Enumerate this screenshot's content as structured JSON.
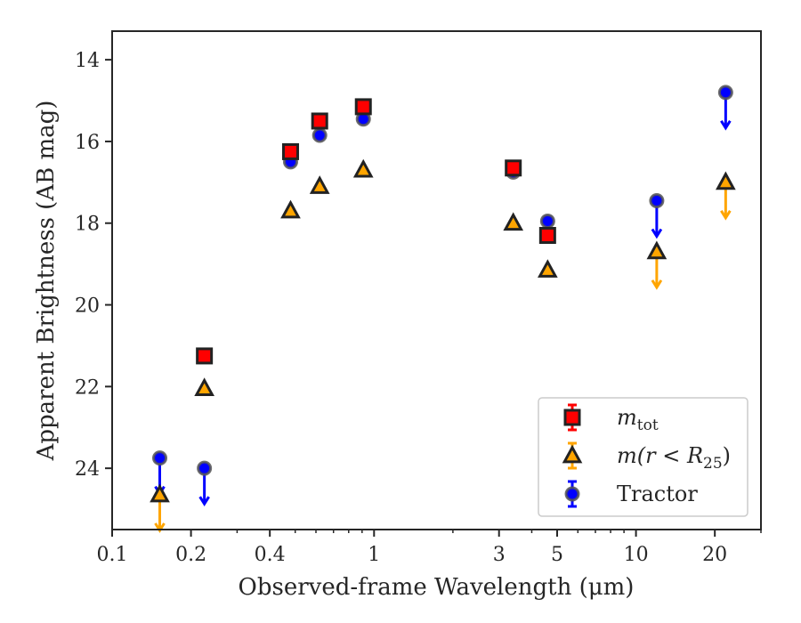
{
  "chart_data": {
    "type": "scatter",
    "xscale": "log",
    "xlim": [
      0.1,
      30
    ],
    "ylim": [
      25.5,
      13.3
    ],
    "y_inverted": true,
    "grid": false,
    "legend_position": "lower-right",
    "xlabel": "Observed-frame Wavelength (μm)",
    "ylabel": "Apparent Brightness (AB mag)",
    "xticks": [
      {
        "value": 0.1,
        "label": "0.1"
      },
      {
        "value": 0.2,
        "label": "0.2"
      },
      {
        "value": 0.4,
        "label": "0.4"
      },
      {
        "value": 1,
        "label": "1"
      },
      {
        "value": 3,
        "label": "3"
      },
      {
        "value": 5,
        "label": "5"
      },
      {
        "value": 10,
        "label": "10"
      },
      {
        "value": 20,
        "label": "20"
      }
    ],
    "yticks": [
      {
        "value": 14,
        "label": "14"
      },
      {
        "value": 16,
        "label": "16"
      },
      {
        "value": 18,
        "label": "18"
      },
      {
        "value": 20,
        "label": "20"
      },
      {
        "value": 22,
        "label": "22"
      },
      {
        "value": 24,
        "label": "24"
      }
    ],
    "series": [
      {
        "name": "m_tot",
        "legend_label": "m",
        "legend_subscript": "tot",
        "marker": "square",
        "color": "#ff0000",
        "edgecolor": "#222222",
        "points": [
          {
            "x": 0.225,
            "y": 21.25
          },
          {
            "x": 0.48,
            "y": 16.25
          },
          {
            "x": 0.62,
            "y": 15.5
          },
          {
            "x": 0.91,
            "y": 15.15
          },
          {
            "x": 3.4,
            "y": 16.65
          },
          {
            "x": 4.6,
            "y": 18.3
          }
        ]
      },
      {
        "name": "m(r < R25)",
        "legend_label": "m(r < R",
        "legend_subscript": "25",
        "legend_suffix": ")",
        "marker": "triangle",
        "color": "#ffa500",
        "edgecolor": "#222222",
        "points": [
          {
            "x": 0.152,
            "y": 24.65,
            "upper_limit": true
          },
          {
            "x": 0.225,
            "y": 22.05
          },
          {
            "x": 0.48,
            "y": 17.7
          },
          {
            "x": 0.62,
            "y": 17.1
          },
          {
            "x": 0.91,
            "y": 16.7
          },
          {
            "x": 3.4,
            "y": 18.0
          },
          {
            "x": 4.6,
            "y": 19.15
          },
          {
            "x": 12.0,
            "y": 18.7,
            "upper_limit": true
          },
          {
            "x": 22.0,
            "y": 17.0,
            "upper_limit": true
          }
        ]
      },
      {
        "name": "Tractor",
        "legend_label": "Tractor",
        "marker": "circle",
        "color": "#0000ff",
        "edgecolor": "#555555",
        "points": [
          {
            "x": 0.152,
            "y": 23.75,
            "upper_limit": true
          },
          {
            "x": 0.225,
            "y": 24.0,
            "upper_limit": true
          },
          {
            "x": 0.48,
            "y": 16.5
          },
          {
            "x": 0.62,
            "y": 15.85
          },
          {
            "x": 0.91,
            "y": 15.45
          },
          {
            "x": 3.4,
            "y": 16.75
          },
          {
            "x": 4.6,
            "y": 17.95
          },
          {
            "x": 12.0,
            "y": 17.45,
            "upper_limit": true
          },
          {
            "x": 22.0,
            "y": 14.8,
            "upper_limit": true
          }
        ]
      }
    ]
  }
}
